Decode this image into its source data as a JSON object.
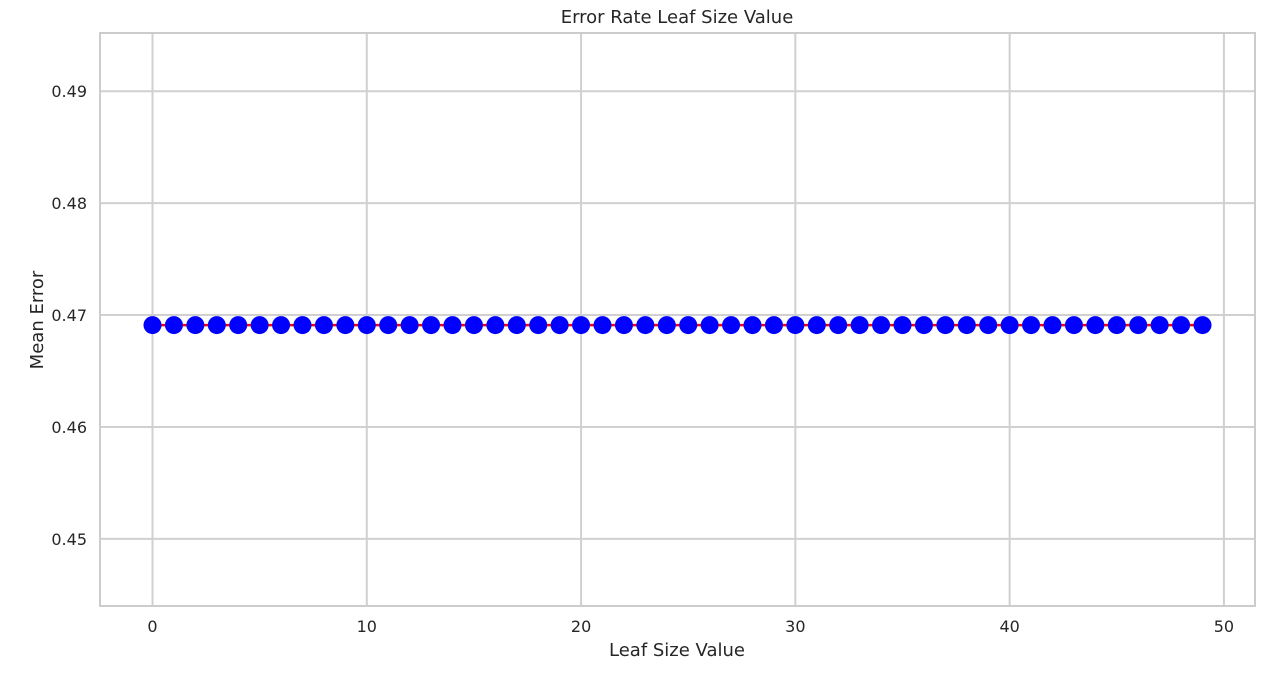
{
  "chart_data": {
    "type": "line",
    "title": "Error Rate Leaf Size Value",
    "xlabel": "Leaf Size Value",
    "ylabel": "Mean Error",
    "xlim": [
      -2.45,
      51.45
    ],
    "ylim": [
      0.444,
      0.4952
    ],
    "xticks": [
      0,
      10,
      20,
      30,
      40,
      50
    ],
    "yticks": [
      0.45,
      0.46,
      0.47,
      0.48,
      0.49
    ],
    "xtick_labels": [
      "0",
      "10",
      "20",
      "30",
      "40",
      "50"
    ],
    "ytick_labels": [
      "0.45",
      "0.46",
      "0.47",
      "0.48",
      "0.49"
    ],
    "grid": true,
    "series": [
      {
        "line_color": "#ff0000",
        "marker_color": "#0000ff",
        "marker": "circle",
        "x": [
          0,
          1,
          2,
          3,
          4,
          5,
          6,
          7,
          8,
          9,
          10,
          11,
          12,
          13,
          14,
          15,
          16,
          17,
          18,
          19,
          20,
          21,
          22,
          23,
          24,
          25,
          26,
          27,
          28,
          29,
          30,
          31,
          32,
          33,
          34,
          35,
          36,
          37,
          38,
          39,
          40,
          41,
          42,
          43,
          44,
          45,
          46,
          47,
          48,
          49
        ],
        "values": [
          0.4691,
          0.4691,
          0.4691,
          0.4691,
          0.4691,
          0.4691,
          0.4691,
          0.4691,
          0.4691,
          0.4691,
          0.4691,
          0.4691,
          0.4691,
          0.4691,
          0.4691,
          0.4691,
          0.4691,
          0.4691,
          0.4691,
          0.4691,
          0.4691,
          0.4691,
          0.4691,
          0.4691,
          0.4691,
          0.4691,
          0.4691,
          0.4691,
          0.4691,
          0.4691,
          0.4691,
          0.4691,
          0.4691,
          0.4691,
          0.4691,
          0.4691,
          0.4691,
          0.4691,
          0.4691,
          0.4691,
          0.4691,
          0.4691,
          0.4691,
          0.4691,
          0.4691,
          0.4691,
          0.4691,
          0.4691,
          0.4691,
          0.4691
        ]
      }
    ]
  }
}
